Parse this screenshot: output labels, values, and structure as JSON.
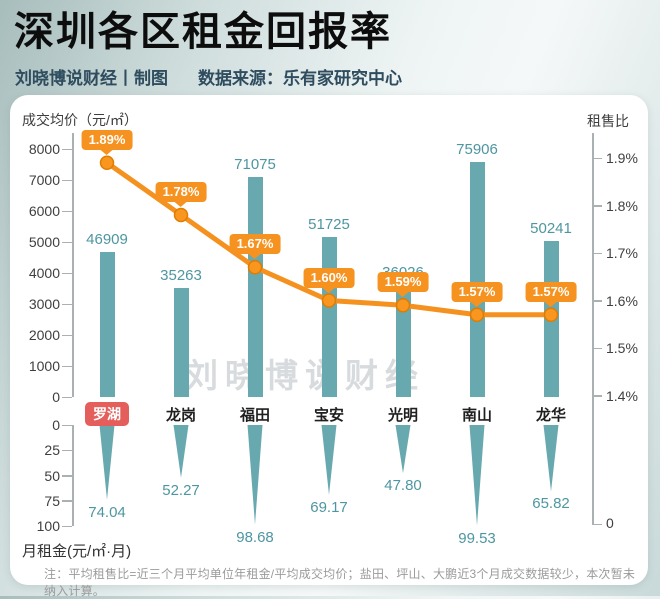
{
  "header": {
    "title": "深圳各区租金回报率",
    "credit": "刘晓博说财经丨制图",
    "source": "数据来源：乐有家研究中心"
  },
  "watermark": "刘晓博说财经",
  "note": "注：平均租售比=近三个月平均单位年租金/平均成交均价；盐田、坪山、大鹏近3个月成交数据较少，本次暂未纳入计算。",
  "colors": {
    "bar": "#68a9b0",
    "value_text": "#4e96a1",
    "line": "#f5911e",
    "marker_fill": "#f8961f",
    "marker_stroke": "#e07c00",
    "badge": "#f6921f",
    "highlight_badge": "#e45f5c",
    "axis": "#a9b1b3"
  },
  "chart_data": {
    "type": "combo",
    "title": "深圳各区租金回报率",
    "categories": [
      "罗湖",
      "龙岗",
      "福田",
      "宝安",
      "光明",
      "南山",
      "龙华"
    ],
    "highlight_category": "罗湖",
    "grid": false,
    "legend_position": "none",
    "series": [
      {
        "name": "成交均价",
        "chart": "bar",
        "unit": "元/㎡",
        "values": [
          46909,
          35263,
          71075,
          51725,
          36026,
          75906,
          50241
        ]
      },
      {
        "name": "租售比",
        "chart": "line",
        "unit": "%",
        "values": [
          1.89,
          1.78,
          1.67,
          1.6,
          1.59,
          1.57,
          1.57
        ],
        "point_labels": [
          "1.89%",
          "1.78%",
          "1.67%",
          "1.60%",
          "1.59%",
          "1.57%",
          "1.57%"
        ]
      },
      {
        "name": "月租金",
        "chart": "needle",
        "unit": "元/㎡·月",
        "values": [
          74.04,
          52.27,
          98.68,
          69.17,
          47.8,
          99.53,
          65.82
        ],
        "value_labels": [
          "74.04",
          "52.27",
          "98.68",
          "69.17",
          "47.80",
          "99.53",
          "65.82"
        ]
      }
    ],
    "axes": {
      "price": {
        "title": "成交均价（元/㎡）",
        "ticks": [
          "0",
          "1000",
          "2000",
          "3000",
          "4000",
          "5000",
          "6000",
          "7000",
          "8000"
        ],
        "range": [
          0,
          8000
        ],
        "plot_note": "bar heights plotted as value/10"
      },
      "ratio": {
        "title": "租售比",
        "ticks": [
          "1.9%",
          "1.8%",
          "1.7%",
          "1.6%",
          "1.5%",
          "1.4%"
        ],
        "bottom_label": "0",
        "range_pct": [
          1.4,
          1.9
        ]
      },
      "rent": {
        "title": "月租金(元/㎡·月)",
        "ticks": [
          "0",
          "25",
          "50",
          "75",
          "100"
        ],
        "range": [
          0,
          100
        ]
      }
    }
  }
}
